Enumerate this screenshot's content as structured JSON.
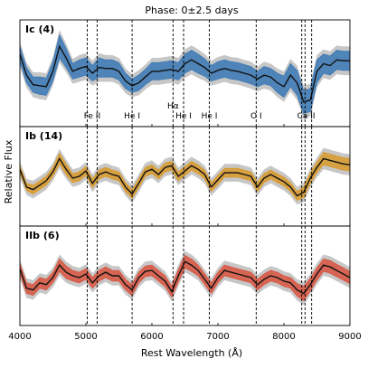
{
  "chart_data": {
    "type": "line",
    "title": "Phase: 0±2.5 days",
    "xlabel": "Rest Wavelength (Å)",
    "ylabel": "Relative Flux",
    "xlim": [
      4000,
      9000
    ],
    "x_ticks": [
      "4000",
      "5000",
      "6000",
      "7000",
      "8000",
      "9000"
    ],
    "grid": false,
    "line_markers": [
      {
        "label": "Fe II",
        "x": [
          5020,
          5170
        ]
      },
      {
        "label": "He I",
        "x": [
          5700
        ]
      },
      {
        "label": "Hα",
        "x": [
          6320
        ]
      },
      {
        "label": "He I",
        "x": [
          6480
        ]
      },
      {
        "label": "He I",
        "x": [
          6870
        ]
      },
      {
        "label": "O I",
        "x": [
          7580
        ]
      },
      {
        "label": "Ca II",
        "x": [
          8270,
          8320,
          8420
        ]
      }
    ],
    "panels": [
      {
        "label": "Ic (4)",
        "band_color": "#3a78b5",
        "x": [
          4000,
          4100,
          4200,
          4300,
          4400,
          4500,
          4600,
          4700,
          4800,
          4900,
          5000,
          5100,
          5200,
          5300,
          5400,
          5500,
          5600,
          5700,
          5800,
          5900,
          6000,
          6100,
          6200,
          6300,
          6400,
          6500,
          6600,
          6700,
          6800,
          6900,
          7000,
          7100,
          7200,
          7300,
          7400,
          7500,
          7600,
          7700,
          7800,
          7900,
          8000,
          8100,
          8200,
          8300,
          8400,
          8500,
          8600,
          8700,
          8800,
          8900,
          9000
        ],
        "mean": [
          0.7,
          0.48,
          0.38,
          0.37,
          0.36,
          0.52,
          0.78,
          0.66,
          0.52,
          0.55,
          0.57,
          0.5,
          0.56,
          0.55,
          0.55,
          0.52,
          0.42,
          0.37,
          0.4,
          0.46,
          0.52,
          0.52,
          0.53,
          0.54,
          0.52,
          0.6,
          0.64,
          0.6,
          0.56,
          0.5,
          0.53,
          0.55,
          0.53,
          0.52,
          0.5,
          0.48,
          0.44,
          0.48,
          0.46,
          0.4,
          0.36,
          0.48,
          0.4,
          0.2,
          0.22,
          0.52,
          0.6,
          0.58,
          0.64,
          0.63,
          0.63
        ],
        "lower": [
          0.62,
          0.4,
          0.3,
          0.28,
          0.27,
          0.42,
          0.66,
          0.56,
          0.44,
          0.46,
          0.48,
          0.42,
          0.46,
          0.46,
          0.46,
          0.43,
          0.34,
          0.3,
          0.32,
          0.38,
          0.43,
          0.43,
          0.44,
          0.45,
          0.43,
          0.5,
          0.54,
          0.5,
          0.47,
          0.42,
          0.44,
          0.46,
          0.44,
          0.43,
          0.41,
          0.39,
          0.36,
          0.39,
          0.37,
          0.3,
          0.25,
          0.36,
          0.27,
          0.08,
          0.1,
          0.4,
          0.5,
          0.48,
          0.54,
          0.53,
          0.53
        ],
        "upper": [
          0.78,
          0.56,
          0.46,
          0.46,
          0.45,
          0.62,
          0.9,
          0.76,
          0.6,
          0.64,
          0.66,
          0.58,
          0.66,
          0.64,
          0.64,
          0.61,
          0.5,
          0.44,
          0.48,
          0.54,
          0.61,
          0.61,
          0.62,
          0.63,
          0.61,
          0.7,
          0.74,
          0.7,
          0.65,
          0.58,
          0.62,
          0.64,
          0.62,
          0.61,
          0.59,
          0.57,
          0.52,
          0.57,
          0.55,
          0.5,
          0.47,
          0.6,
          0.53,
          0.32,
          0.34,
          0.64,
          0.7,
          0.68,
          0.74,
          0.73,
          0.73
        ]
      },
      {
        "label": "Ib (14)",
        "band_color": "#d89a2c",
        "x": [
          4000,
          4100,
          4200,
          4300,
          4400,
          4500,
          4600,
          4700,
          4800,
          4900,
          5000,
          5100,
          5200,
          5300,
          5400,
          5500,
          5600,
          5700,
          5800,
          5900,
          6000,
          6100,
          6200,
          6300,
          6400,
          6500,
          6600,
          6700,
          6800,
          6900,
          7000,
          7100,
          7200,
          7300,
          7400,
          7500,
          7600,
          7700,
          7800,
          7900,
          8000,
          8100,
          8200,
          8300,
          8400,
          8500,
          8600,
          8700,
          8800,
          8900,
          9000
        ],
        "mean": [
          0.58,
          0.38,
          0.35,
          0.4,
          0.45,
          0.55,
          0.7,
          0.58,
          0.48,
          0.5,
          0.56,
          0.42,
          0.52,
          0.55,
          0.52,
          0.5,
          0.38,
          0.3,
          0.42,
          0.55,
          0.58,
          0.52,
          0.6,
          0.62,
          0.5,
          0.56,
          0.62,
          0.58,
          0.52,
          0.38,
          0.46,
          0.54,
          0.54,
          0.54,
          0.52,
          0.5,
          0.38,
          0.48,
          0.52,
          0.48,
          0.44,
          0.38,
          0.28,
          0.32,
          0.48,
          0.6,
          0.7,
          0.68,
          0.66,
          0.64,
          0.63
        ],
        "lower": [
          0.54,
          0.34,
          0.3,
          0.35,
          0.4,
          0.5,
          0.64,
          0.52,
          0.43,
          0.45,
          0.51,
          0.37,
          0.47,
          0.5,
          0.47,
          0.45,
          0.33,
          0.25,
          0.37,
          0.5,
          0.53,
          0.47,
          0.55,
          0.57,
          0.45,
          0.51,
          0.57,
          0.53,
          0.47,
          0.33,
          0.41,
          0.49,
          0.49,
          0.49,
          0.47,
          0.45,
          0.33,
          0.43,
          0.47,
          0.43,
          0.39,
          0.33,
          0.23,
          0.26,
          0.42,
          0.54,
          0.63,
          0.61,
          0.59,
          0.57,
          0.56
        ],
        "upper": [
          0.62,
          0.42,
          0.4,
          0.45,
          0.5,
          0.6,
          0.76,
          0.64,
          0.53,
          0.55,
          0.61,
          0.47,
          0.57,
          0.6,
          0.57,
          0.55,
          0.43,
          0.35,
          0.47,
          0.6,
          0.63,
          0.57,
          0.65,
          0.67,
          0.55,
          0.61,
          0.67,
          0.63,
          0.57,
          0.43,
          0.51,
          0.59,
          0.59,
          0.59,
          0.57,
          0.55,
          0.43,
          0.53,
          0.57,
          0.53,
          0.49,
          0.43,
          0.33,
          0.38,
          0.54,
          0.66,
          0.77,
          0.75,
          0.73,
          0.71,
          0.7
        ]
      },
      {
        "label": "IIb (6)",
        "band_color": "#d9543f",
        "x": [
          4000,
          4100,
          4200,
          4300,
          4400,
          4500,
          4600,
          4700,
          4800,
          4900,
          5000,
          5100,
          5200,
          5300,
          5400,
          5500,
          5600,
          5700,
          5800,
          5900,
          6000,
          6100,
          6200,
          6300,
          6400,
          6500,
          6600,
          6700,
          6800,
          6900,
          7000,
          7100,
          7200,
          7300,
          7400,
          7500,
          7600,
          7700,
          7800,
          7900,
          8000,
          8100,
          8200,
          8300,
          8400,
          8500,
          8600,
          8700,
          8800,
          8900,
          9000
        ],
        "mean": [
          0.58,
          0.36,
          0.34,
          0.42,
          0.4,
          0.48,
          0.62,
          0.54,
          0.5,
          0.48,
          0.52,
          0.42,
          0.5,
          0.54,
          0.5,
          0.5,
          0.4,
          0.34,
          0.48,
          0.55,
          0.56,
          0.5,
          0.44,
          0.32,
          0.5,
          0.66,
          0.62,
          0.56,
          0.46,
          0.36,
          0.48,
          0.56,
          0.54,
          0.52,
          0.5,
          0.48,
          0.4,
          0.46,
          0.5,
          0.48,
          0.44,
          0.42,
          0.34,
          0.3,
          0.4,
          0.52,
          0.62,
          0.6,
          0.56,
          0.52,
          0.48
        ],
        "lower": [
          0.52,
          0.3,
          0.28,
          0.36,
          0.34,
          0.42,
          0.55,
          0.47,
          0.44,
          0.42,
          0.46,
          0.36,
          0.44,
          0.48,
          0.44,
          0.44,
          0.34,
          0.28,
          0.42,
          0.49,
          0.5,
          0.44,
          0.38,
          0.26,
          0.43,
          0.59,
          0.55,
          0.5,
          0.4,
          0.3,
          0.42,
          0.5,
          0.48,
          0.46,
          0.44,
          0.42,
          0.34,
          0.4,
          0.44,
          0.42,
          0.38,
          0.36,
          0.27,
          0.22,
          0.33,
          0.45,
          0.55,
          0.53,
          0.49,
          0.45,
          0.41
        ],
        "upper": [
          0.64,
          0.42,
          0.4,
          0.48,
          0.46,
          0.54,
          0.69,
          0.61,
          0.56,
          0.54,
          0.58,
          0.48,
          0.56,
          0.6,
          0.56,
          0.56,
          0.46,
          0.4,
          0.54,
          0.61,
          0.62,
          0.56,
          0.5,
          0.38,
          0.57,
          0.73,
          0.69,
          0.62,
          0.52,
          0.42,
          0.54,
          0.62,
          0.6,
          0.58,
          0.56,
          0.54,
          0.46,
          0.52,
          0.56,
          0.54,
          0.5,
          0.48,
          0.41,
          0.38,
          0.47,
          0.59,
          0.69,
          0.67,
          0.63,
          0.59,
          0.55
        ]
      }
    ]
  }
}
